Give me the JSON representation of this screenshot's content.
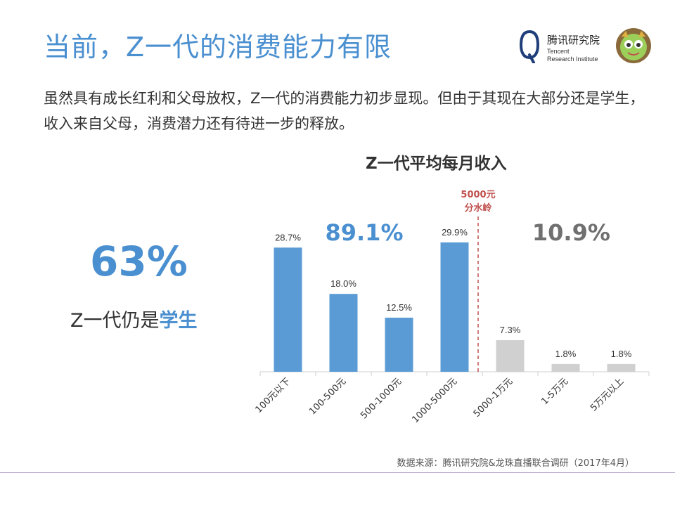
{
  "page": {
    "title": "当前，Z一代的消费能力有限",
    "intro": "虽然具有成长红利和父母放权，Z一代的消费能力初步显现。但由于其现在大部分还是学生，收入来自父母，消费潜力还有待进一步的释放。",
    "footer": "数据来源：腾讯研究院&龙珠直播联合调研（2017年4月）"
  },
  "logo": {
    "name": "腾讯研究院",
    "english_line1": "Tencent",
    "english_line2": "Research Institute"
  },
  "stat": {
    "percent": "63%",
    "label_prefix": "Z一代仍是",
    "label_highlight": "学生"
  },
  "chart_data": {
    "type": "bar",
    "title": "Z一代平均每月收入",
    "categories": [
      "100元以下",
      "100-500元",
      "500-1000元",
      "1000-5000元",
      "5000-1万元",
      "1-5万元",
      "5万元以上"
    ],
    "values": [
      28.7,
      18.0,
      12.5,
      29.9,
      7.3,
      1.8,
      1.8
    ],
    "value_labels": [
      "28.7%",
      "18.0%",
      "12.5%",
      "29.9%",
      "7.3%",
      "1.8%",
      "1.8%"
    ],
    "group_colors": [
      "#5b9bd5",
      "#5b9bd5",
      "#5b9bd5",
      "#5b9bd5",
      "#d0d0d0",
      "#d0d0d0",
      "#d0d0d0"
    ],
    "divider": {
      "line1": "5000元",
      "line2": "分水岭",
      "color": "#c0504d"
    },
    "groups": [
      {
        "label": "89.1%",
        "color": "#4a8fd0"
      },
      {
        "label": "10.9%",
        "color": "#707070"
      }
    ],
    "ylim": [
      0,
      32
    ],
    "grid": false,
    "legend": "none"
  }
}
